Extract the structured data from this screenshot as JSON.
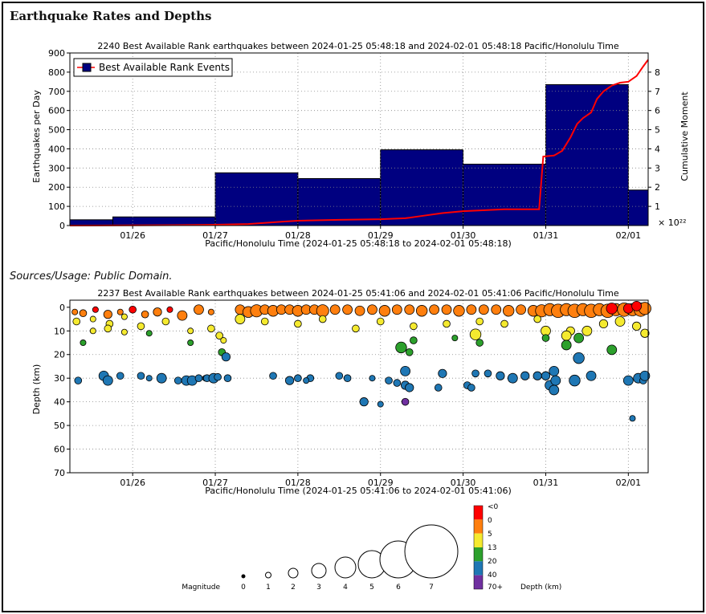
{
  "page": {
    "title": "Earthquake Rates and Depths",
    "sources": "Sources/Usage: Public Domain."
  },
  "colors": {
    "bar_fill": "#000080",
    "cumulative_line": "#ff0000",
    "depth_lt0": "#ff0000",
    "depth_0": "#ff7f0e",
    "depth_5": "#f5ea2f",
    "depth_13": "#2ca02c",
    "depth_20": "#1f77b4",
    "depth_40": "#1f77b4",
    "depth_70plus": "#7030a0"
  },
  "chart_data": [
    {
      "type": "bar",
      "title": "2240 Best Available Rank earthquakes between 2024-01-25 05:48:18 and 2024-02-01 05:48:18 Pacific/Honolulu Time",
      "ylabel": "Earthquakes per Day",
      "y2label": "Cumulative Moment",
      "y2_exponent": "× 10²²",
      "xlabel": "Pacific/Honolulu Time (2024-01-25 05:48:18 to 2024-02-01 05:48:18)",
      "legend": {
        "label": "Best Available Rank Events",
        "placement": "top-left"
      },
      "x_ticks": [
        {
          "label": "01/26",
          "x": 1.0
        },
        {
          "label": "01/27",
          "x": 2.0
        },
        {
          "label": "01/28",
          "x": 3.0
        },
        {
          "label": "01/29",
          "x": 4.0
        },
        {
          "label": "01/30",
          "x": 5.0
        },
        {
          "label": "01/31",
          "x": 6.0
        },
        {
          "label": "02/01",
          "x": 7.0
        }
      ],
      "xlim": [
        0.24,
        7.24
      ],
      "ylim": [
        0,
        900
      ],
      "y_ticks": [
        0,
        100,
        200,
        300,
        400,
        500,
        600,
        700,
        800,
        900
      ],
      "y2lim": [
        0,
        9
      ],
      "y2_ticks": [
        1,
        2,
        3,
        4,
        5,
        6,
        7,
        8
      ],
      "grid": true,
      "bars": [
        {
          "x0": 0.24,
          "x1": 0.76,
          "value": 30
        },
        {
          "x0": 0.76,
          "x1": 2.0,
          "value": 45
        },
        {
          "x0": 2.0,
          "x1": 3.0,
          "value": 275
        },
        {
          "x0": 3.0,
          "x1": 4.0,
          "value": 245
        },
        {
          "x0": 4.0,
          "x1": 5.0,
          "value": 395
        },
        {
          "x0": 5.0,
          "x1": 6.0,
          "value": 320
        },
        {
          "x0": 6.0,
          "x1": 7.0,
          "value": 735
        },
        {
          "x0": 7.0,
          "x1": 7.24,
          "value": 185
        }
      ],
      "cumulative_moment": [
        [
          0.24,
          0.0
        ],
        [
          1.5,
          0.02
        ],
        [
          2.0,
          0.04
        ],
        [
          2.4,
          0.08
        ],
        [
          2.8,
          0.2
        ],
        [
          3.0,
          0.25
        ],
        [
          3.5,
          0.3
        ],
        [
          4.0,
          0.33
        ],
        [
          4.3,
          0.38
        ],
        [
          4.5,
          0.5
        ],
        [
          4.75,
          0.65
        ],
        [
          5.0,
          0.75
        ],
        [
          5.5,
          0.85
        ],
        [
          5.92,
          0.85
        ],
        [
          5.95,
          2.5
        ],
        [
          5.97,
          3.6
        ],
        [
          6.1,
          3.65
        ],
        [
          6.2,
          3.9
        ],
        [
          6.3,
          4.6
        ],
        [
          6.38,
          5.3
        ],
        [
          6.45,
          5.6
        ],
        [
          6.55,
          5.9
        ],
        [
          6.62,
          6.6
        ],
        [
          6.7,
          7.0
        ],
        [
          6.8,
          7.3
        ],
        [
          6.9,
          7.45
        ],
        [
          7.0,
          7.5
        ],
        [
          7.1,
          7.8
        ],
        [
          7.18,
          8.3
        ],
        [
          7.24,
          8.65
        ]
      ]
    },
    {
      "type": "scatter",
      "title": "2237 Best Available Rank earthquakes between 2024-01-25 05:41:06 and 2024-02-01 05:41:06 Pacific/Honolulu Time",
      "ylabel": "Depth (km)",
      "xlabel": "Pacific/Honolulu Time (2024-01-25 05:41:06 to 2024-02-01 05:41:06)",
      "x_ticks": [
        {
          "label": "01/26",
          "x": 1.0
        },
        {
          "label": "01/27",
          "x": 2.0
        },
        {
          "label": "01/28",
          "x": 3.0
        },
        {
          "label": "01/29",
          "x": 4.0
        },
        {
          "label": "01/30",
          "x": 5.0
        },
        {
          "label": "01/31",
          "x": 6.0
        },
        {
          "label": "02/01",
          "x": 7.0
        }
      ],
      "xlim": [
        0.24,
        7.24
      ],
      "ylim": [
        70,
        -3
      ],
      "y_ticks": [
        0,
        10,
        20,
        30,
        40,
        50,
        60,
        70
      ],
      "grid": true,
      "points": [
        [
          0.3,
          2,
          1.5,
          "0"
        ],
        [
          0.4,
          2.5,
          2,
          "0"
        ],
        [
          0.55,
          1,
          1.5,
          "lt0"
        ],
        [
          0.7,
          3,
          2.5,
          "0"
        ],
        [
          0.85,
          2,
          1.5,
          "0"
        ],
        [
          1.0,
          1,
          2,
          "lt0"
        ],
        [
          1.15,
          3,
          2,
          "0"
        ],
        [
          1.3,
          2,
          2.5,
          "0"
        ],
        [
          1.45,
          1,
          1.5,
          "lt0"
        ],
        [
          1.6,
          3.5,
          3,
          "0"
        ],
        [
          1.8,
          1,
          3,
          "0"
        ],
        [
          1.95,
          2,
          1.5,
          "0"
        ],
        [
          0.32,
          6,
          2,
          "5"
        ],
        [
          0.52,
          5,
          1.5,
          "5"
        ],
        [
          0.72,
          7,
          2,
          "5"
        ],
        [
          0.9,
          4,
          1.5,
          "5"
        ],
        [
          1.1,
          8,
          2,
          "5"
        ],
        [
          1.4,
          6,
          2,
          "5"
        ],
        [
          0.52,
          10,
          1.5,
          "5"
        ],
        [
          0.7,
          9,
          2,
          "5"
        ],
        [
          0.9,
          10.5,
          1.5,
          "5"
        ],
        [
          1.2,
          11,
          1.5,
          "13"
        ],
        [
          1.7,
          10,
          1.5,
          "5"
        ],
        [
          1.95,
          9,
          2,
          "5"
        ],
        [
          2.05,
          12,
          2,
          "5"
        ],
        [
          2.1,
          14,
          1.5,
          "5"
        ],
        [
          2.08,
          19,
          2,
          "13"
        ],
        [
          2.13,
          21,
          2.5,
          "20"
        ],
        [
          1.7,
          15,
          1.5,
          "13"
        ],
        [
          0.4,
          15,
          1.5,
          "13"
        ],
        [
          0.34,
          31,
          2,
          "20"
        ],
        [
          0.65,
          29,
          3,
          "20"
        ],
        [
          0.7,
          31,
          3,
          "20"
        ],
        [
          0.85,
          29,
          2,
          "20"
        ],
        [
          1.1,
          29,
          2,
          "20"
        ],
        [
          1.2,
          30,
          1.5,
          "20"
        ],
        [
          1.35,
          30,
          3,
          "20"
        ],
        [
          1.55,
          31,
          2,
          "20"
        ],
        [
          1.65,
          31,
          3,
          "20"
        ],
        [
          1.72,
          31,
          3,
          "20"
        ],
        [
          1.8,
          30,
          2,
          "20"
        ],
        [
          1.88,
          30,
          1.5,
          "20"
        ],
        [
          1.9,
          30,
          2,
          "20"
        ],
        [
          1.98,
          30,
          3,
          "20"
        ],
        [
          2.03,
          29.5,
          2,
          "20"
        ],
        [
          2.15,
          30,
          2,
          "20"
        ],
        [
          2.3,
          1,
          3,
          "0"
        ],
        [
          2.4,
          2,
          3.5,
          "0"
        ],
        [
          2.5,
          1.5,
          4,
          "0"
        ],
        [
          2.6,
          1,
          3,
          "0"
        ],
        [
          2.7,
          1.5,
          3.5,
          "0"
        ],
        [
          2.8,
          1,
          3,
          "0"
        ],
        [
          2.9,
          1,
          3,
          "0"
        ],
        [
          3.0,
          1.5,
          3.5,
          "0"
        ],
        [
          3.1,
          1,
          3,
          "0"
        ],
        [
          3.2,
          1,
          3,
          "0"
        ],
        [
          3.3,
          1.5,
          4,
          "0"
        ],
        [
          3.45,
          1,
          3,
          "0"
        ],
        [
          3.6,
          1,
          3,
          "0"
        ],
        [
          3.75,
          1.5,
          3,
          "0"
        ],
        [
          3.9,
          1,
          3,
          "0"
        ],
        [
          4.05,
          1.5,
          3.5,
          "0"
        ],
        [
          4.2,
          1,
          3,
          "0"
        ],
        [
          4.35,
          1,
          3,
          "0"
        ],
        [
          4.5,
          1.5,
          3.5,
          "0"
        ],
        [
          4.65,
          1,
          3,
          "0"
        ],
        [
          4.8,
          1,
          3,
          "0"
        ],
        [
          4.95,
          1.5,
          3.5,
          "0"
        ],
        [
          5.1,
          1,
          3,
          "0"
        ],
        [
          5.25,
          1,
          3,
          "0"
        ],
        [
          5.4,
          1,
          3,
          "0"
        ],
        [
          5.55,
          1.5,
          3.5,
          "0"
        ],
        [
          5.7,
          1,
          3,
          "0"
        ],
        [
          5.85,
          1.5,
          3.5,
          "0"
        ],
        [
          5.95,
          1.5,
          4,
          "0"
        ],
        [
          6.05,
          1,
          4,
          "0"
        ],
        [
          6.15,
          1.5,
          4.5,
          "0"
        ],
        [
          6.25,
          1,
          4,
          "0"
        ],
        [
          6.35,
          1.5,
          4.5,
          "0"
        ],
        [
          6.45,
          1,
          4,
          "0"
        ],
        [
          6.55,
          1.5,
          4.5,
          "0"
        ],
        [
          6.65,
          1,
          4,
          "0"
        ],
        [
          6.75,
          1.5,
          4.5,
          "0"
        ],
        [
          6.85,
          1,
          4,
          "0"
        ],
        [
          6.95,
          1,
          4.5,
          "0"
        ],
        [
          7.05,
          1,
          4,
          "0"
        ],
        [
          7.15,
          1,
          4.5,
          "0"
        ],
        [
          7.2,
          0.5,
          4,
          "0"
        ],
        [
          6.8,
          0.5,
          3.5,
          "lt0"
        ],
        [
          7.0,
          0.5,
          3,
          "lt0"
        ],
        [
          7.1,
          -0.5,
          3,
          "lt0"
        ],
        [
          2.3,
          5,
          3,
          "5"
        ],
        [
          2.6,
          6,
          2,
          "5"
        ],
        [
          3.0,
          7,
          2,
          "5"
        ],
        [
          3.3,
          5,
          2,
          "5"
        ],
        [
          3.7,
          9,
          2,
          "5"
        ],
        [
          4.0,
          6,
          2,
          "5"
        ],
        [
          4.4,
          8,
          2,
          "5"
        ],
        [
          4.8,
          7,
          2,
          "5"
        ],
        [
          5.2,
          6,
          2,
          "5"
        ],
        [
          5.5,
          7,
          2,
          "5"
        ],
        [
          5.9,
          5,
          2,
          "5"
        ],
        [
          6.3,
          10,
          2.5,
          "5"
        ],
        [
          6.5,
          10,
          3,
          "5"
        ],
        [
          6.7,
          7,
          2.5,
          "5"
        ],
        [
          6.9,
          6,
          3,
          "5"
        ],
        [
          7.1,
          8,
          2.5,
          "5"
        ],
        [
          7.2,
          11,
          2.5,
          "5"
        ],
        [
          5.15,
          11.5,
          3.5,
          "5"
        ],
        [
          6.0,
          10,
          3,
          "5"
        ],
        [
          6.25,
          12,
          3,
          "5"
        ],
        [
          6.4,
          13,
          3,
          "13"
        ],
        [
          6.25,
          16,
          3,
          "13"
        ],
        [
          6.0,
          13,
          2,
          "13"
        ],
        [
          5.2,
          15,
          2,
          "13"
        ],
        [
          4.9,
          13,
          1.5,
          "13"
        ],
        [
          6.8,
          18,
          3,
          "13"
        ],
        [
          4.25,
          17,
          3.5,
          "13"
        ],
        [
          4.4,
          14,
          2,
          "13"
        ],
        [
          4.35,
          19,
          2,
          "13"
        ],
        [
          6.4,
          21.5,
          3.5,
          "20"
        ],
        [
          6.1,
          27,
          3,
          "20"
        ],
        [
          4.3,
          27,
          3,
          "20"
        ],
        [
          4.75,
          28,
          2.5,
          "20"
        ],
        [
          5.15,
          28,
          2,
          "20"
        ],
        [
          5.3,
          28,
          2,
          "20"
        ],
        [
          5.45,
          29,
          2.5,
          "20"
        ],
        [
          5.6,
          30,
          3,
          "20"
        ],
        [
          5.75,
          29,
          2.5,
          "20"
        ],
        [
          5.9,
          29,
          2.5,
          "20"
        ],
        [
          6.0,
          29,
          2.5,
          "20"
        ],
        [
          6.05,
          33,
          3,
          "20"
        ],
        [
          6.12,
          31,
          3,
          "20"
        ],
        [
          6.1,
          35,
          3,
          "20"
        ],
        [
          6.35,
          31,
          3.5,
          "20"
        ],
        [
          6.55,
          29,
          3,
          "20"
        ],
        [
          7.0,
          31,
          3,
          "20"
        ],
        [
          7.12,
          30,
          3,
          "20"
        ],
        [
          7.18,
          31,
          2,
          "20"
        ],
        [
          7.2,
          29,
          3,
          "20"
        ],
        [
          3.15,
          30,
          2,
          "20"
        ],
        [
          3.5,
          29,
          2,
          "20"
        ],
        [
          3.6,
          30,
          2,
          "20"
        ],
        [
          3.9,
          30,
          1.5,
          "20"
        ],
        [
          4.1,
          31,
          2,
          "20"
        ],
        [
          4.2,
          32,
          2,
          "20"
        ],
        [
          4.3,
          33,
          2.5,
          "20"
        ],
        [
          4.35,
          34,
          2.5,
          "20"
        ],
        [
          5.05,
          33,
          2,
          "20"
        ],
        [
          5.1,
          34,
          2,
          "20"
        ],
        [
          4.7,
          34,
          2,
          "20"
        ],
        [
          3.8,
          40,
          2.5,
          "20"
        ],
        [
          2.7,
          29,
          2,
          "20"
        ],
        [
          2.9,
          31,
          2.5,
          "20"
        ],
        [
          3.0,
          30,
          2,
          "20"
        ],
        [
          3.1,
          31,
          1.5,
          "20"
        ],
        [
          4.0,
          41,
          1.5,
          "20"
        ],
        [
          7.05,
          47,
          1.5,
          "20"
        ],
        [
          4.3,
          40,
          2,
          "70plus"
        ]
      ],
      "size_legend": {
        "label": "Magnitude",
        "values": [
          "0",
          "1",
          "2",
          "3",
          "4",
          "5",
          "6",
          "7"
        ]
      },
      "color_legend": {
        "label": "Depth (km)",
        "levels": [
          "<0",
          "0",
          "5",
          "13",
          "20",
          "40",
          "70+"
        ]
      }
    }
  ]
}
